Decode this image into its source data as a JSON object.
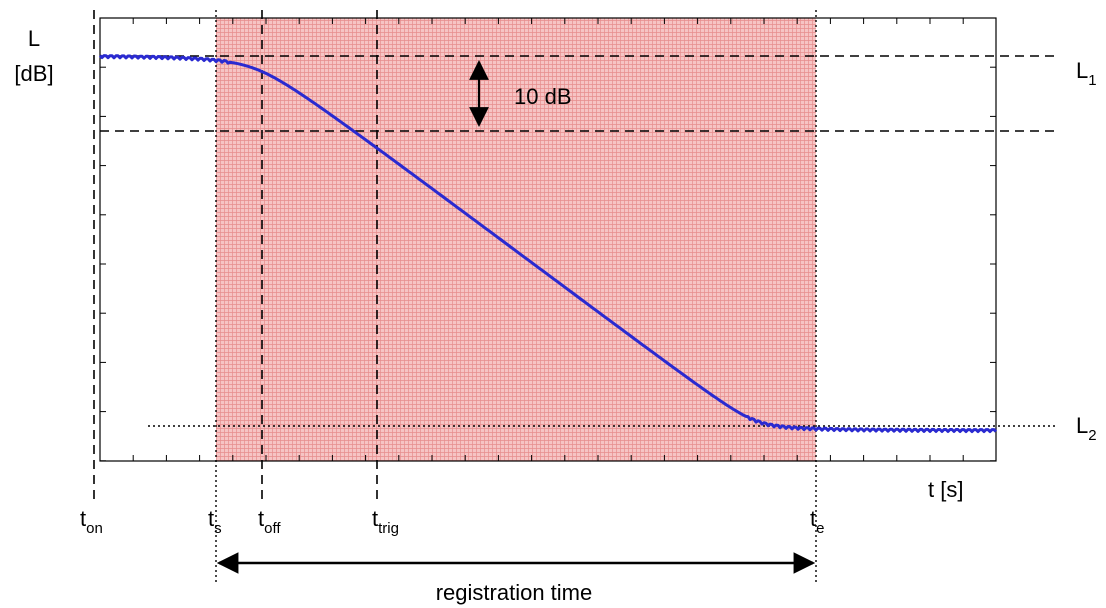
{
  "axes": {
    "y_label_line1": "L",
    "y_label_line2": "[dB]",
    "x_label": "t [s]"
  },
  "levels": {
    "l1": {
      "main": "L",
      "sub": "1"
    },
    "l2": {
      "main": "L",
      "sub": "2"
    },
    "delta_label": "10 dB"
  },
  "times": {
    "t_on": {
      "main": "t",
      "sub": "on"
    },
    "t_s": {
      "main": "t",
      "sub": "s"
    },
    "t_off": {
      "main": "t",
      "sub": "off"
    },
    "t_trig": {
      "main": "t",
      "sub": "trig"
    },
    "t_e": {
      "main": "t",
      "sub": "e"
    }
  },
  "registration_label": "registration time",
  "colors": {
    "curve": "#2a2ad0",
    "window_fill": "#f4b8b8",
    "window_grid": "#e88a8a",
    "guides": "#000000"
  }
}
